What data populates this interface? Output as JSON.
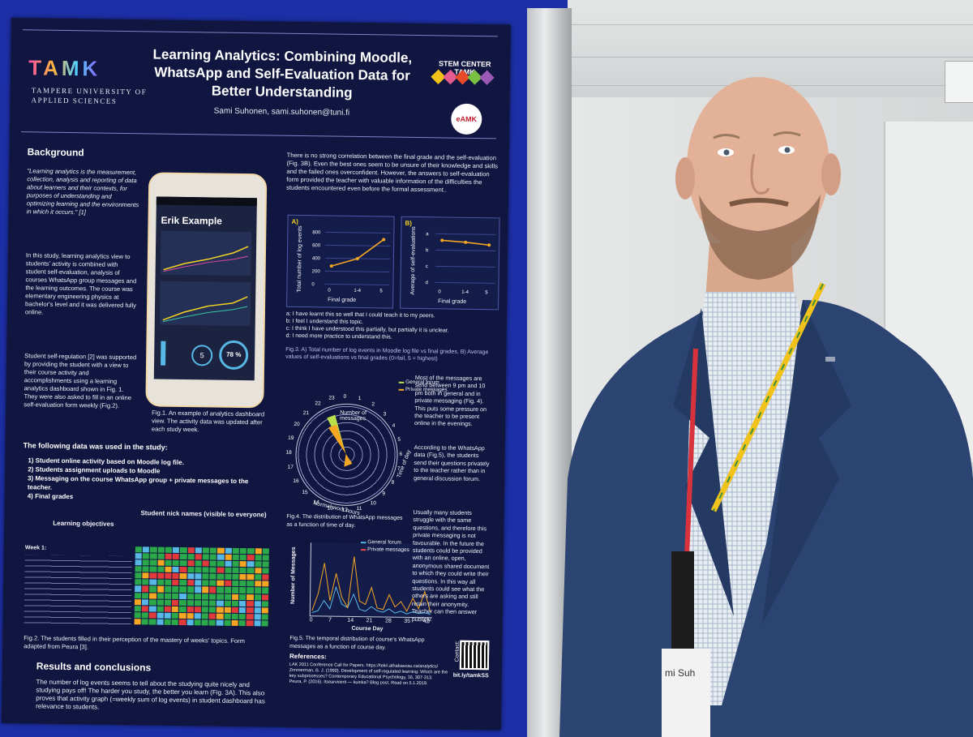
{
  "poster": {
    "logo": "TAMK",
    "institution": "TAMPERE UNIVERSITY OF APPLIED SCIENCES",
    "title": "Learning Analytics: Combining Moodle, WhatsApp and Self-Evaluation Data for Better Understanding",
    "author": "Sami Suhonen, sami.suhonen@tuni.fi",
    "stem_logo": "STEM CENTER TAMK",
    "eamk_logo": "eAMK",
    "background_heading": "Background",
    "background_quote": "\"Learning analytics is the measurement, collection, analysis and reporting of data about learners and their contexts, for purposes of understanding and optimizing learning and the environments in which it occurs.\" [1]",
    "background_p1": "In this study, learning analytics view to students' activity is combined with student self-evaluation, analysis of courses WhatsApp group messages and the learning outcomes. The course was elementary engineering physics at bachelor's level and it was delivered fully online.",
    "background_p2": "Student self-regulation [2] was supported by providing the student with a view to their course activity and accomplishments using a learning analytics dashboard shown in Fig. 1. They were also asked to fill in an online self-evaluation form weekly (Fig.2).",
    "phone_name": "Erik Example",
    "phone_percent": "78 %",
    "phone_level": "5",
    "fig1_caption": "Fig.1. An example of analytics dashboard view. The activity data was updated after each study week.",
    "data_used_heading": "The following data was used in the study:",
    "data_list": [
      "1)  Student online activity based on Moodle log file.",
      "2)  Students assignment uploads to Moodle",
      "3)  Messaging on the course WhatsApp group + private messages to the teacher.",
      "4)  Final grades"
    ],
    "learning_objectives": "Learning objectives",
    "nick_names": "Student nick names (visible to everyone)",
    "week1": "Week 1:",
    "fig2_caption": "Fig.2. The students filled in their perception of the mastery of weeks' topics. Form adapted from Peura [3].",
    "results_heading": "Results and conclusions",
    "results_text": "The number of log events seems to tell about the studying quite nicely and studying pays off! The harder you study, the better you learn (Fig. 3A). This also proves that activity graph (=weekly sum of log events) in student dashboard has relevance to students.",
    "col2_text": "There is no strong correlation between the final grade and the self-evaluation (Fig. 3B). Even the best ones seem to be unsure of their knowledge and skills and the failed ones overconfident. However, the answers to self-evaluation form provided the teacher with valuable information of the difficulties the students encountered even before the formal assessment..",
    "fig3a_label": "A)",
    "fig3a_ylabel": "Total number of log events",
    "fig3a_xlabel": "Final grade",
    "fig3b_label": "B)",
    "fig3b_ylabel": "Average of self-evaluations",
    "fig3b_xlabel": "Final grade",
    "legend_a": "a:  I have learnt this so well that I could teach it to my peers.",
    "legend_b": "b:  I feel I understand this topic.",
    "legend_c": "c:  I think I have understood this partially, but partially it is unclear.",
    "legend_d": "d:  I need more practice to understand this.",
    "fig3_caption": "Fig.3. A) Total number of log events in Moodle log file vs final grades. B) Average values of self-evaluations vs final grades (0=fail, 5 = highest)",
    "radar_legend_general": "General forum",
    "radar_legend_private": "Private messages",
    "radar_center": "Number of messages",
    "radar_bottom": "Normal work hours",
    "radar_side": "Time of day",
    "fig4_caption": "Fig.4. The distribution of WhatsApp messages as a function of time of day.",
    "whatsapp_p1": "Most of the messages are send between 9 pm and 10 pm both in general and in private messaging (Fig. 4). This puts some pressure on the teacher to be present online in the evenings.",
    "whatsapp_p2": "According to the WhatsApp data (Fig.5), the students send their questions privately to the teacher rather than in general discussion forum.",
    "whatsapp_p3": "Usually many students struggle with the same questions, and therefore this private messaging is not favourable. In the future the students could be provided with an online, open, anonymous shared document to which they could write their questions. In this way all students could see what the others are asking and still retain their anonymity. Teacher can then answer publicly.",
    "fig5_ylabel": "Number of Messages",
    "fig5_xlabel": "Course Day",
    "fig5_legend_general": "General forum",
    "fig5_legend_private": "Private messages",
    "fig5_caption": "Fig.5. The temporal distribution of course's WhatsApp messages as a function of course day.",
    "references_heading": "References:",
    "ref1": "LAK 2011 Conference Call for Papers. https://tekri.athabascau.ca/analytics/",
    "ref2": "Zimmerman, B. J. (1990). Development of self-regulated learning: Which are the key subprocesses? Contemporary Educational Psychology, 16, 307-313.",
    "ref3": "Peura, P. (2016). Itsearviointi — kuinka? Blog post. Read on 5.1.2019.",
    "contact": "Contact:",
    "short_link": "bit.ly/tamkSS"
  },
  "badge_text": "mi Suh",
  "colors": {
    "board_blue": "#1d2fa6",
    "poster_navy": "#10163f",
    "line_orange": "#f5a623",
    "jacket_blue": "#2c4472"
  },
  "chart_data": [
    {
      "type": "line",
      "title": "A)",
      "xlabel": "Final grade",
      "ylabel": "Total number of log events",
      "categories": [
        "0",
        "1-4",
        "5"
      ],
      "values": [
        280,
        400,
        700
      ],
      "ylim": [
        0,
        800
      ],
      "yticks": [
        0,
        200,
        400,
        600,
        800
      ]
    },
    {
      "type": "line",
      "title": "B)",
      "xlabel": "Final grade",
      "ylabel": "Average of self-evaluations",
      "categories": [
        "0",
        "1-4",
        "5"
      ],
      "yticks": [
        "a",
        "b",
        "c",
        "d"
      ],
      "values": [
        2.4,
        2.5,
        2.65
      ]
    },
    {
      "type": "line",
      "xlabel": "Course Day",
      "ylabel": "Number of Messages",
      "ylim": [
        0,
        100
      ],
      "yticks": [
        0,
        20,
        40,
        60,
        80,
        100
      ],
      "xticks": [
        0,
        7,
        14,
        21,
        28,
        35,
        42
      ],
      "series": [
        {
          "name": "General forum",
          "values": [
            2,
            5,
            20,
            8,
            40,
            15,
            10,
            30,
            8,
            5,
            12,
            6,
            4,
            9,
            3,
            6,
            2,
            5,
            3,
            4,
            2
          ]
        },
        {
          "name": "Private messages",
          "values": [
            5,
            30,
            75,
            20,
            60,
            25,
            10,
            85,
            20,
            15,
            40,
            10,
            8,
            30,
            12,
            20,
            6,
            25,
            10,
            35,
            5
          ]
        }
      ]
    },
    {
      "type": "radar",
      "categories": [
        "0",
        "1",
        "2",
        "3",
        "4",
        "5",
        "6",
        "7",
        "8",
        "9",
        "10",
        "11",
        "12",
        "13",
        "14",
        "15",
        "16",
        "17",
        "18",
        "19",
        "20",
        "21",
        "22",
        "23"
      ]
    }
  ]
}
